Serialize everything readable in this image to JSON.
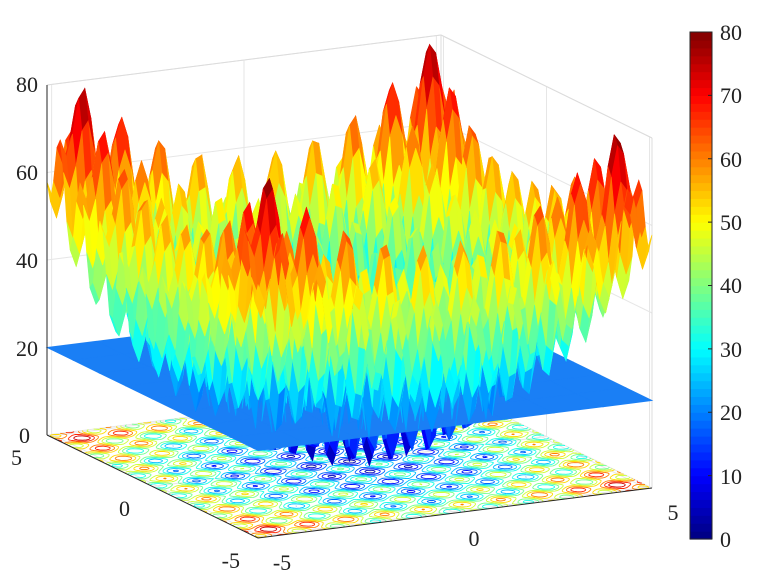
{
  "chart_data": {
    "type": "surface",
    "function": "Rastrigin",
    "x_range": [
      -5.12,
      5.12
    ],
    "y_range": [
      -5.12,
      5.12
    ],
    "z_range": [
      0,
      80
    ],
    "zlim": [
      0,
      80
    ],
    "x_ticks": [
      -5,
      0,
      5
    ],
    "y_ticks": [
      -5,
      0,
      5
    ],
    "z_ticks": [
      0,
      20,
      40,
      60,
      80
    ],
    "x_tick_labels": [
      "-5",
      "0",
      "5"
    ],
    "y_tick_labels": [
      "-5",
      "0",
      "5"
    ],
    "z_tick_labels": [
      "0",
      "20",
      "40",
      "60",
      "80"
    ],
    "colormap": "jet",
    "colorbar": {
      "range": [
        0,
        80
      ],
      "ticks": [
        0,
        10,
        20,
        30,
        40,
        50,
        60,
        70,
        80
      ],
      "tick_labels": [
        "0",
        "10",
        "20",
        "30",
        "40",
        "50",
        "60",
        "70",
        "80"
      ],
      "placement": "right"
    },
    "plane": {
      "z": 20,
      "color": "#1a7ff5"
    },
    "contour_at_floor": true,
    "grid": true,
    "title": "",
    "xlabel": "",
    "ylabel": "",
    "zlabel": ""
  }
}
